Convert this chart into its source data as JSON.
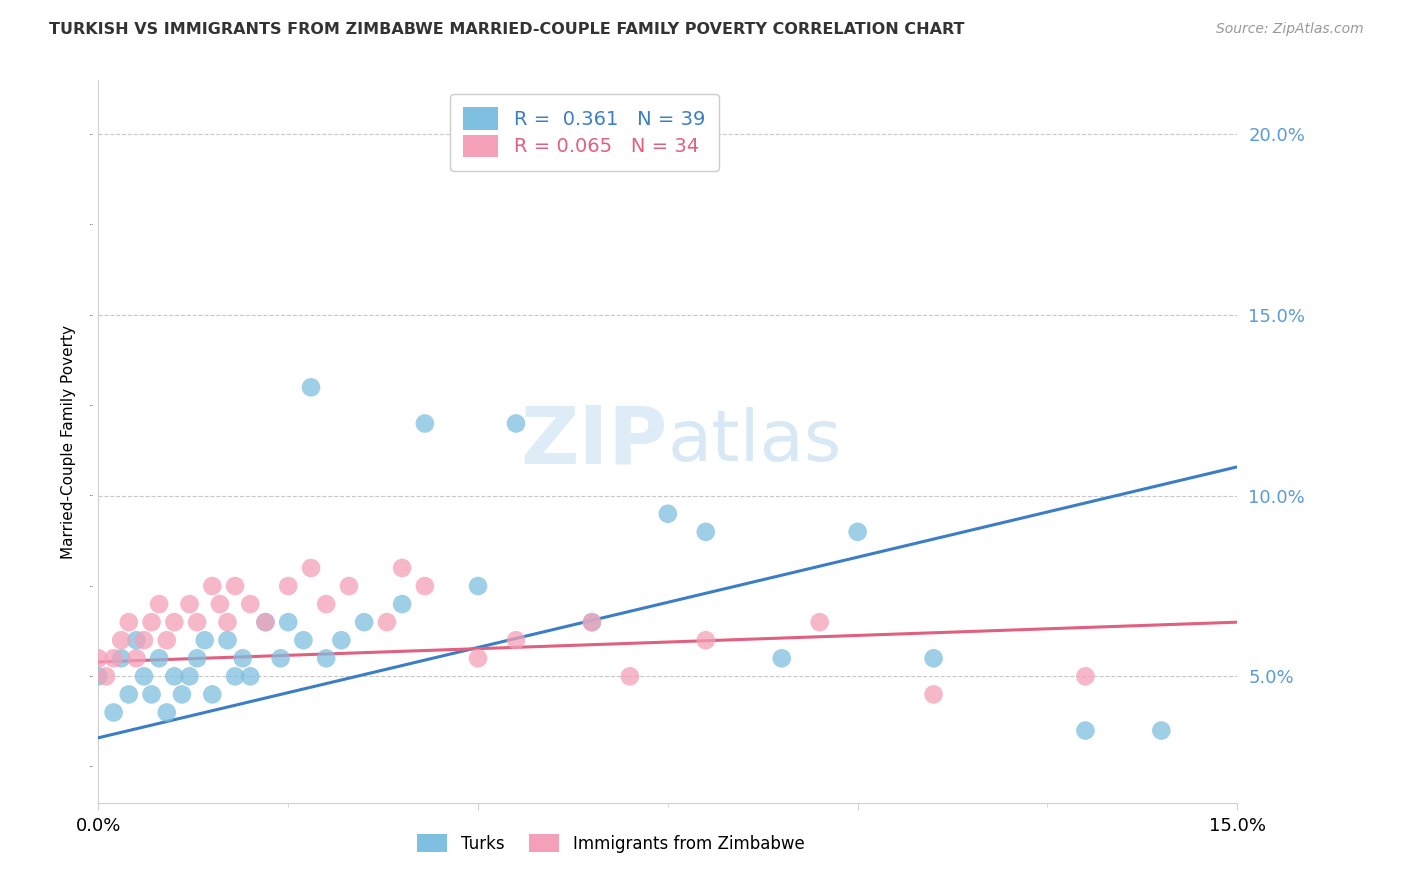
{
  "title": "TURKISH VS IMMIGRANTS FROM ZIMBABWE MARRIED-COUPLE FAMILY POVERTY CORRELATION CHART",
  "source": "Source: ZipAtlas.com",
  "ylabel": "Married-Couple Family Poverty",
  "xlim": [
    0.0,
    0.15
  ],
  "ylim": [
    0.015,
    0.215
  ],
  "yticks_right": [
    0.05,
    0.1,
    0.15,
    0.2
  ],
  "ytick_labels_right": [
    "5.0%",
    "10.0%",
    "15.0%",
    "20.0%"
  ],
  "blue_color": "#7fbfdf",
  "pink_color": "#f4a0b8",
  "blue_line_color": "#3b7ec4",
  "pink_line_color": "#e06080",
  "blue_R": 0.361,
  "blue_N": 39,
  "pink_R": 0.065,
  "pink_N": 34,
  "turks_x": [
    0.0,
    0.002,
    0.003,
    0.004,
    0.005,
    0.006,
    0.007,
    0.008,
    0.009,
    0.01,
    0.011,
    0.012,
    0.013,
    0.014,
    0.015,
    0.017,
    0.018,
    0.019,
    0.02,
    0.022,
    0.024,
    0.025,
    0.027,
    0.028,
    0.03,
    0.032,
    0.035,
    0.04,
    0.043,
    0.05,
    0.055,
    0.065,
    0.075,
    0.08,
    0.09,
    0.1,
    0.11,
    0.13,
    0.14
  ],
  "turks_y": [
    0.05,
    0.04,
    0.055,
    0.045,
    0.06,
    0.05,
    0.045,
    0.055,
    0.04,
    0.05,
    0.045,
    0.05,
    0.055,
    0.06,
    0.045,
    0.06,
    0.05,
    0.055,
    0.05,
    0.065,
    0.055,
    0.065,
    0.06,
    0.13,
    0.055,
    0.06,
    0.065,
    0.07,
    0.12,
    0.075,
    0.12,
    0.065,
    0.095,
    0.09,
    0.055,
    0.09,
    0.055,
    0.035,
    0.035
  ],
  "zimb_x": [
    0.0,
    0.001,
    0.002,
    0.003,
    0.004,
    0.005,
    0.006,
    0.007,
    0.008,
    0.009,
    0.01,
    0.012,
    0.013,
    0.015,
    0.016,
    0.017,
    0.018,
    0.02,
    0.022,
    0.025,
    0.028,
    0.03,
    0.033,
    0.038,
    0.04,
    0.043,
    0.05,
    0.055,
    0.065,
    0.07,
    0.08,
    0.095,
    0.11,
    0.13
  ],
  "zimb_y": [
    0.055,
    0.05,
    0.055,
    0.06,
    0.065,
    0.055,
    0.06,
    0.065,
    0.07,
    0.06,
    0.065,
    0.07,
    0.065,
    0.075,
    0.07,
    0.065,
    0.075,
    0.07,
    0.065,
    0.075,
    0.08,
    0.07,
    0.075,
    0.065,
    0.08,
    0.075,
    0.055,
    0.06,
    0.065,
    0.05,
    0.06,
    0.065,
    0.045,
    0.05
  ]
}
